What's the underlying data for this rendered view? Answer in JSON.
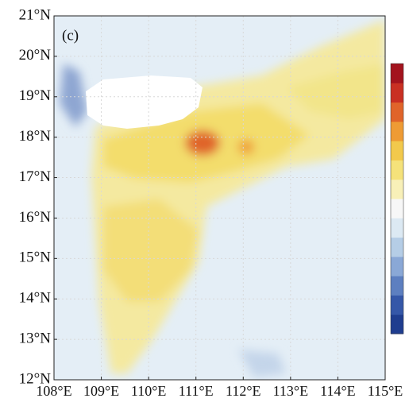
{
  "chart_data": {
    "type": "map",
    "panel_label": "(c)",
    "xlim": [
      108,
      115
    ],
    "ylim": [
      12,
      21
    ],
    "xticks": [
      {
        "value": 108,
        "label": "108°E"
      },
      {
        "value": 109,
        "label": "109°E"
      },
      {
        "value": 110,
        "label": "110°E"
      },
      {
        "value": 111,
        "label": "111°E"
      },
      {
        "value": 112,
        "label": "112°E"
      },
      {
        "value": 113,
        "label": "113°E"
      },
      {
        "value": 114,
        "label": "114°E"
      },
      {
        "value": 115,
        "label": "115°E"
      }
    ],
    "yticks": [
      {
        "value": 12,
        "label": "12°N"
      },
      {
        "value": 13,
        "label": "13°N"
      },
      {
        "value": 14,
        "label": "14°N"
      },
      {
        "value": 15,
        "label": "15°N"
      },
      {
        "value": 16,
        "label": "16°N"
      },
      {
        "value": 17,
        "label": "17°N"
      },
      {
        "value": 18,
        "label": "18°N"
      },
      {
        "value": 19,
        "label": "19°N"
      },
      {
        "value": 20,
        "label": "20°N"
      },
      {
        "value": 21,
        "label": "21°N"
      }
    ],
    "grid": true,
    "colorbar_colors": [
      "#1f3d8f",
      "#3557a8",
      "#5d7fc0",
      "#8aa8d6",
      "#b5cde6",
      "#dce9f3",
      "#f7f7f7",
      "#f8f0b8",
      "#f5e27a",
      "#f2c94c",
      "#ee9b34",
      "#e0642a",
      "#c93023",
      "#a3141e"
    ]
  }
}
